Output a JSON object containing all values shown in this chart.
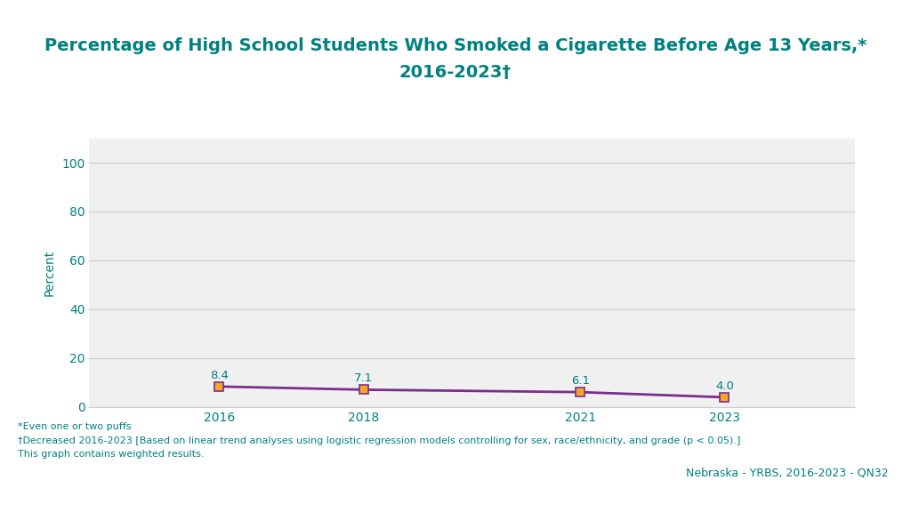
{
  "title_line1": "Percentage of High School Students Who Smoked a Cigarette Before Age 13 Years,*",
  "title_line2": "2016-2023†",
  "title_color": "#008080",
  "title_fontsize": 14,
  "ylabel": "Percent",
  "ylabel_color": "#008080",
  "years": [
    2016,
    2018,
    2021,
    2023
  ],
  "values": [
    8.4,
    7.1,
    6.1,
    4.0
  ],
  "line_color": "#7B2D8B",
  "marker_color": "#F5A623",
  "marker_edge_color": "#7B2D8B",
  "yticks": [
    0,
    20,
    40,
    60,
    80,
    100
  ],
  "ylim": [
    0,
    110
  ],
  "background_color": "#ffffff",
  "plot_bg_color": "#f0f0f0",
  "grid_color": "#cccccc",
  "footnote1": "*Even one or two puffs",
  "footnote2": "†Decreased 2016-2023 [Based on linear trend analyses using logistic regression models controlling for sex, race/ethnicity, and grade (p < 0.05).]",
  "footnote3": "This graph contains weighted results.",
  "footnote_color": "#008080",
  "watermark": "Nebraska - YRBS, 2016-2023 - QN32",
  "watermark_color": "#008080",
  "bar_colors_bottom": [
    "#008080",
    "#7B2D8B",
    "#C0392B",
    "#9DB8CC",
    "#F5A623",
    "#1A5276"
  ],
  "bar_widths_bottom": [
    0.18,
    0.11,
    0.16,
    0.17,
    0.16,
    0.1
  ]
}
